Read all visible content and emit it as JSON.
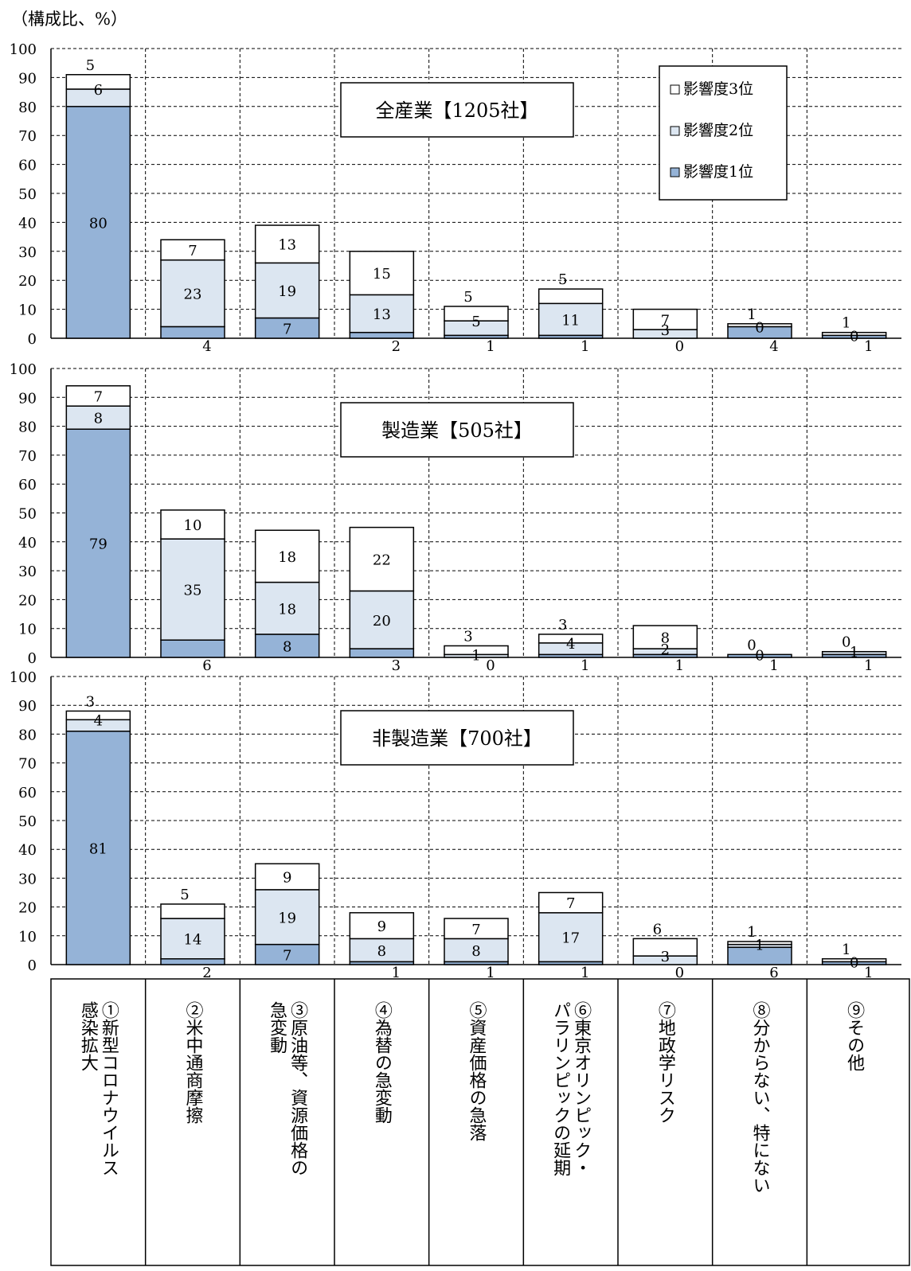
{
  "unit_label": "（構成比、%）",
  "colors": {
    "rank1": "#95b3d7",
    "rank2": "#dce6f1",
    "rank3": "#ffffff",
    "border": "#000000"
  },
  "categories": [
    "①新型コロナウイルス感染拡大",
    "②米中通商摩擦",
    "③原油等、資源価格の急変動",
    "④為替の急変動",
    "⑤資産価格の急落",
    "⑥東京オリンピック・パラリンピックの延期",
    "⑦地政学リスク",
    "⑧分からない、特にない",
    "⑨その他"
  ],
  "category_lines": [
    [
      "①新型コロナウイルス",
      "感染拡大"
    ],
    [
      "②米中通商摩擦"
    ],
    [
      "③原油等、資源価格の",
      "急変動"
    ],
    [
      "④為替の急変動"
    ],
    [
      "⑤資産価格の急落"
    ],
    [
      "⑥東京オリンピック・",
      "パラリンピックの延期"
    ],
    [
      "⑦地政学リスク"
    ],
    [
      "⑧分からない、特にない"
    ],
    [
      "⑨その他"
    ]
  ],
  "chart_data": [
    {
      "type": "bar",
      "title": "全産業【1205社】",
      "ylim": [
        0,
        100
      ],
      "legend": [
        "影響度3位",
        "影響度2位",
        "影響度1位"
      ],
      "series": [
        {
          "name": "影響度1位",
          "values": [
            80,
            4,
            7,
            2,
            1,
            1,
            0,
            4,
            1
          ]
        },
        {
          "name": "影響度2位",
          "values": [
            6,
            23,
            19,
            13,
            5,
            11,
            3,
            0,
            0
          ]
        },
        {
          "name": "影響度3位",
          "values": [
            5,
            7,
            13,
            15,
            5,
            5,
            7,
            1,
            1
          ]
        }
      ]
    },
    {
      "type": "bar",
      "title": "製造業【505社】",
      "ylim": [
        0,
        100
      ],
      "series": [
        {
          "name": "影響度1位",
          "values": [
            79,
            6,
            8,
            3,
            0,
            1,
            1,
            1,
            1
          ]
        },
        {
          "name": "影響度2位",
          "values": [
            8,
            35,
            18,
            20,
            1,
            4,
            2,
            0,
            1
          ]
        },
        {
          "name": "影響度3位",
          "values": [
            7,
            10,
            18,
            22,
            3,
            3,
            8,
            0,
            0
          ]
        }
      ]
    },
    {
      "type": "bar",
      "title": "非製造業【700社】",
      "ylim": [
        0,
        100
      ],
      "series": [
        {
          "name": "影響度1位",
          "values": [
            81,
            2,
            7,
            1,
            1,
            1,
            0,
            6,
            1
          ]
        },
        {
          "name": "影響度2位",
          "values": [
            4,
            14,
            19,
            8,
            8,
            17,
            3,
            1,
            0
          ]
        },
        {
          "name": "影響度3位",
          "values": [
            3,
            5,
            9,
            9,
            7,
            7,
            6,
            1,
            1
          ]
        }
      ]
    }
  ]
}
